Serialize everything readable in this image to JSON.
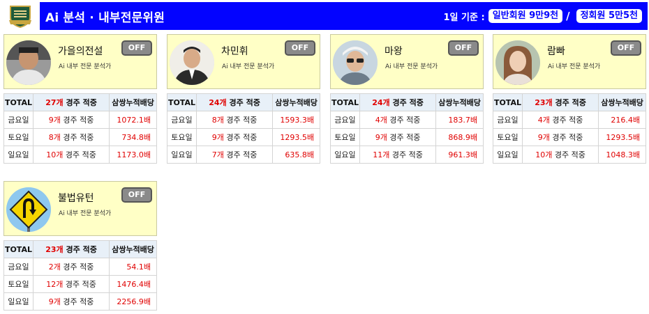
{
  "header": {
    "title": "Ai 분석 · 내부전문위원",
    "basis_label": "1일 기준 :",
    "general_member": "일반회원 9만9천",
    "slash": "/",
    "regular_member": "정회원 5만5천"
  },
  "table_headers": {
    "total": "TOTAL",
    "suffix": "경주 적중",
    "dividend": "삼쌍누적배당"
  },
  "experts": [
    {
      "name": "가을의전설",
      "subtitle": "Ai 내부 전문 분석가",
      "toggle": "OFF",
      "total_count": "27개",
      "rows": [
        {
          "day": "금요일",
          "count": "9개",
          "text": "경주 적중",
          "dividend": "1072.1배"
        },
        {
          "day": "토요일",
          "count": "8개",
          "text": "경주 적중",
          "dividend": "734.8배"
        },
        {
          "day": "일요일",
          "count": "10개",
          "text": "경주 적중",
          "dividend": "1173.0배"
        }
      ]
    },
    {
      "name": "차민휘",
      "subtitle": "Ai 내부 전문 분석가",
      "toggle": "OFF",
      "total_count": "24개",
      "rows": [
        {
          "day": "금요일",
          "count": "8개",
          "text": "경주 적중",
          "dividend": "1593.3배"
        },
        {
          "day": "토요일",
          "count": "9개",
          "text": "경주 적중",
          "dividend": "1293.5배"
        },
        {
          "day": "일요일",
          "count": "7개",
          "text": "경주 적중",
          "dividend": "635.8배"
        }
      ]
    },
    {
      "name": "마왕",
      "subtitle": "Ai 내부 전문 분석가",
      "toggle": "OFF",
      "total_count": "24개",
      "rows": [
        {
          "day": "금요일",
          "count": "4개",
          "text": "경주 적중",
          "dividend": "183.7배"
        },
        {
          "day": "토요일",
          "count": "9개",
          "text": "경주 적중",
          "dividend": "868.9배"
        },
        {
          "day": "일요일",
          "count": "11개",
          "text": "경주 적중",
          "dividend": "961.3배"
        }
      ]
    },
    {
      "name": "람빠",
      "subtitle": "Ai 내부 전문 분석가",
      "toggle": "OFF",
      "total_count": "23개",
      "rows": [
        {
          "day": "금요일",
          "count": "4개",
          "text": "경주 적중",
          "dividend": "216.4배"
        },
        {
          "day": "토요일",
          "count": "9개",
          "text": "경주 적중",
          "dividend": "1293.5배"
        },
        {
          "day": "일요일",
          "count": "10개",
          "text": "경주 적중",
          "dividend": "1048.3배"
        }
      ]
    },
    {
      "name": "불법유턴",
      "subtitle": "Ai 내부 전문 분석가",
      "toggle": "OFF",
      "total_count": "23개",
      "rows": [
        {
          "day": "금요일",
          "count": "2개",
          "text": "경주 적중",
          "dividend": "54.1배"
        },
        {
          "day": "토요일",
          "count": "12개",
          "text": "경주 적중",
          "dividend": "1476.4배"
        },
        {
          "day": "일요일",
          "count": "9개",
          "text": "경주 적중",
          "dividend": "2256.9배"
        }
      ]
    }
  ],
  "colors": {
    "header_bg": "#0303ff",
    "profile_bg": "#ffffc6",
    "accent_red": "#e00000",
    "toggle_off": "#8a8a8a"
  }
}
